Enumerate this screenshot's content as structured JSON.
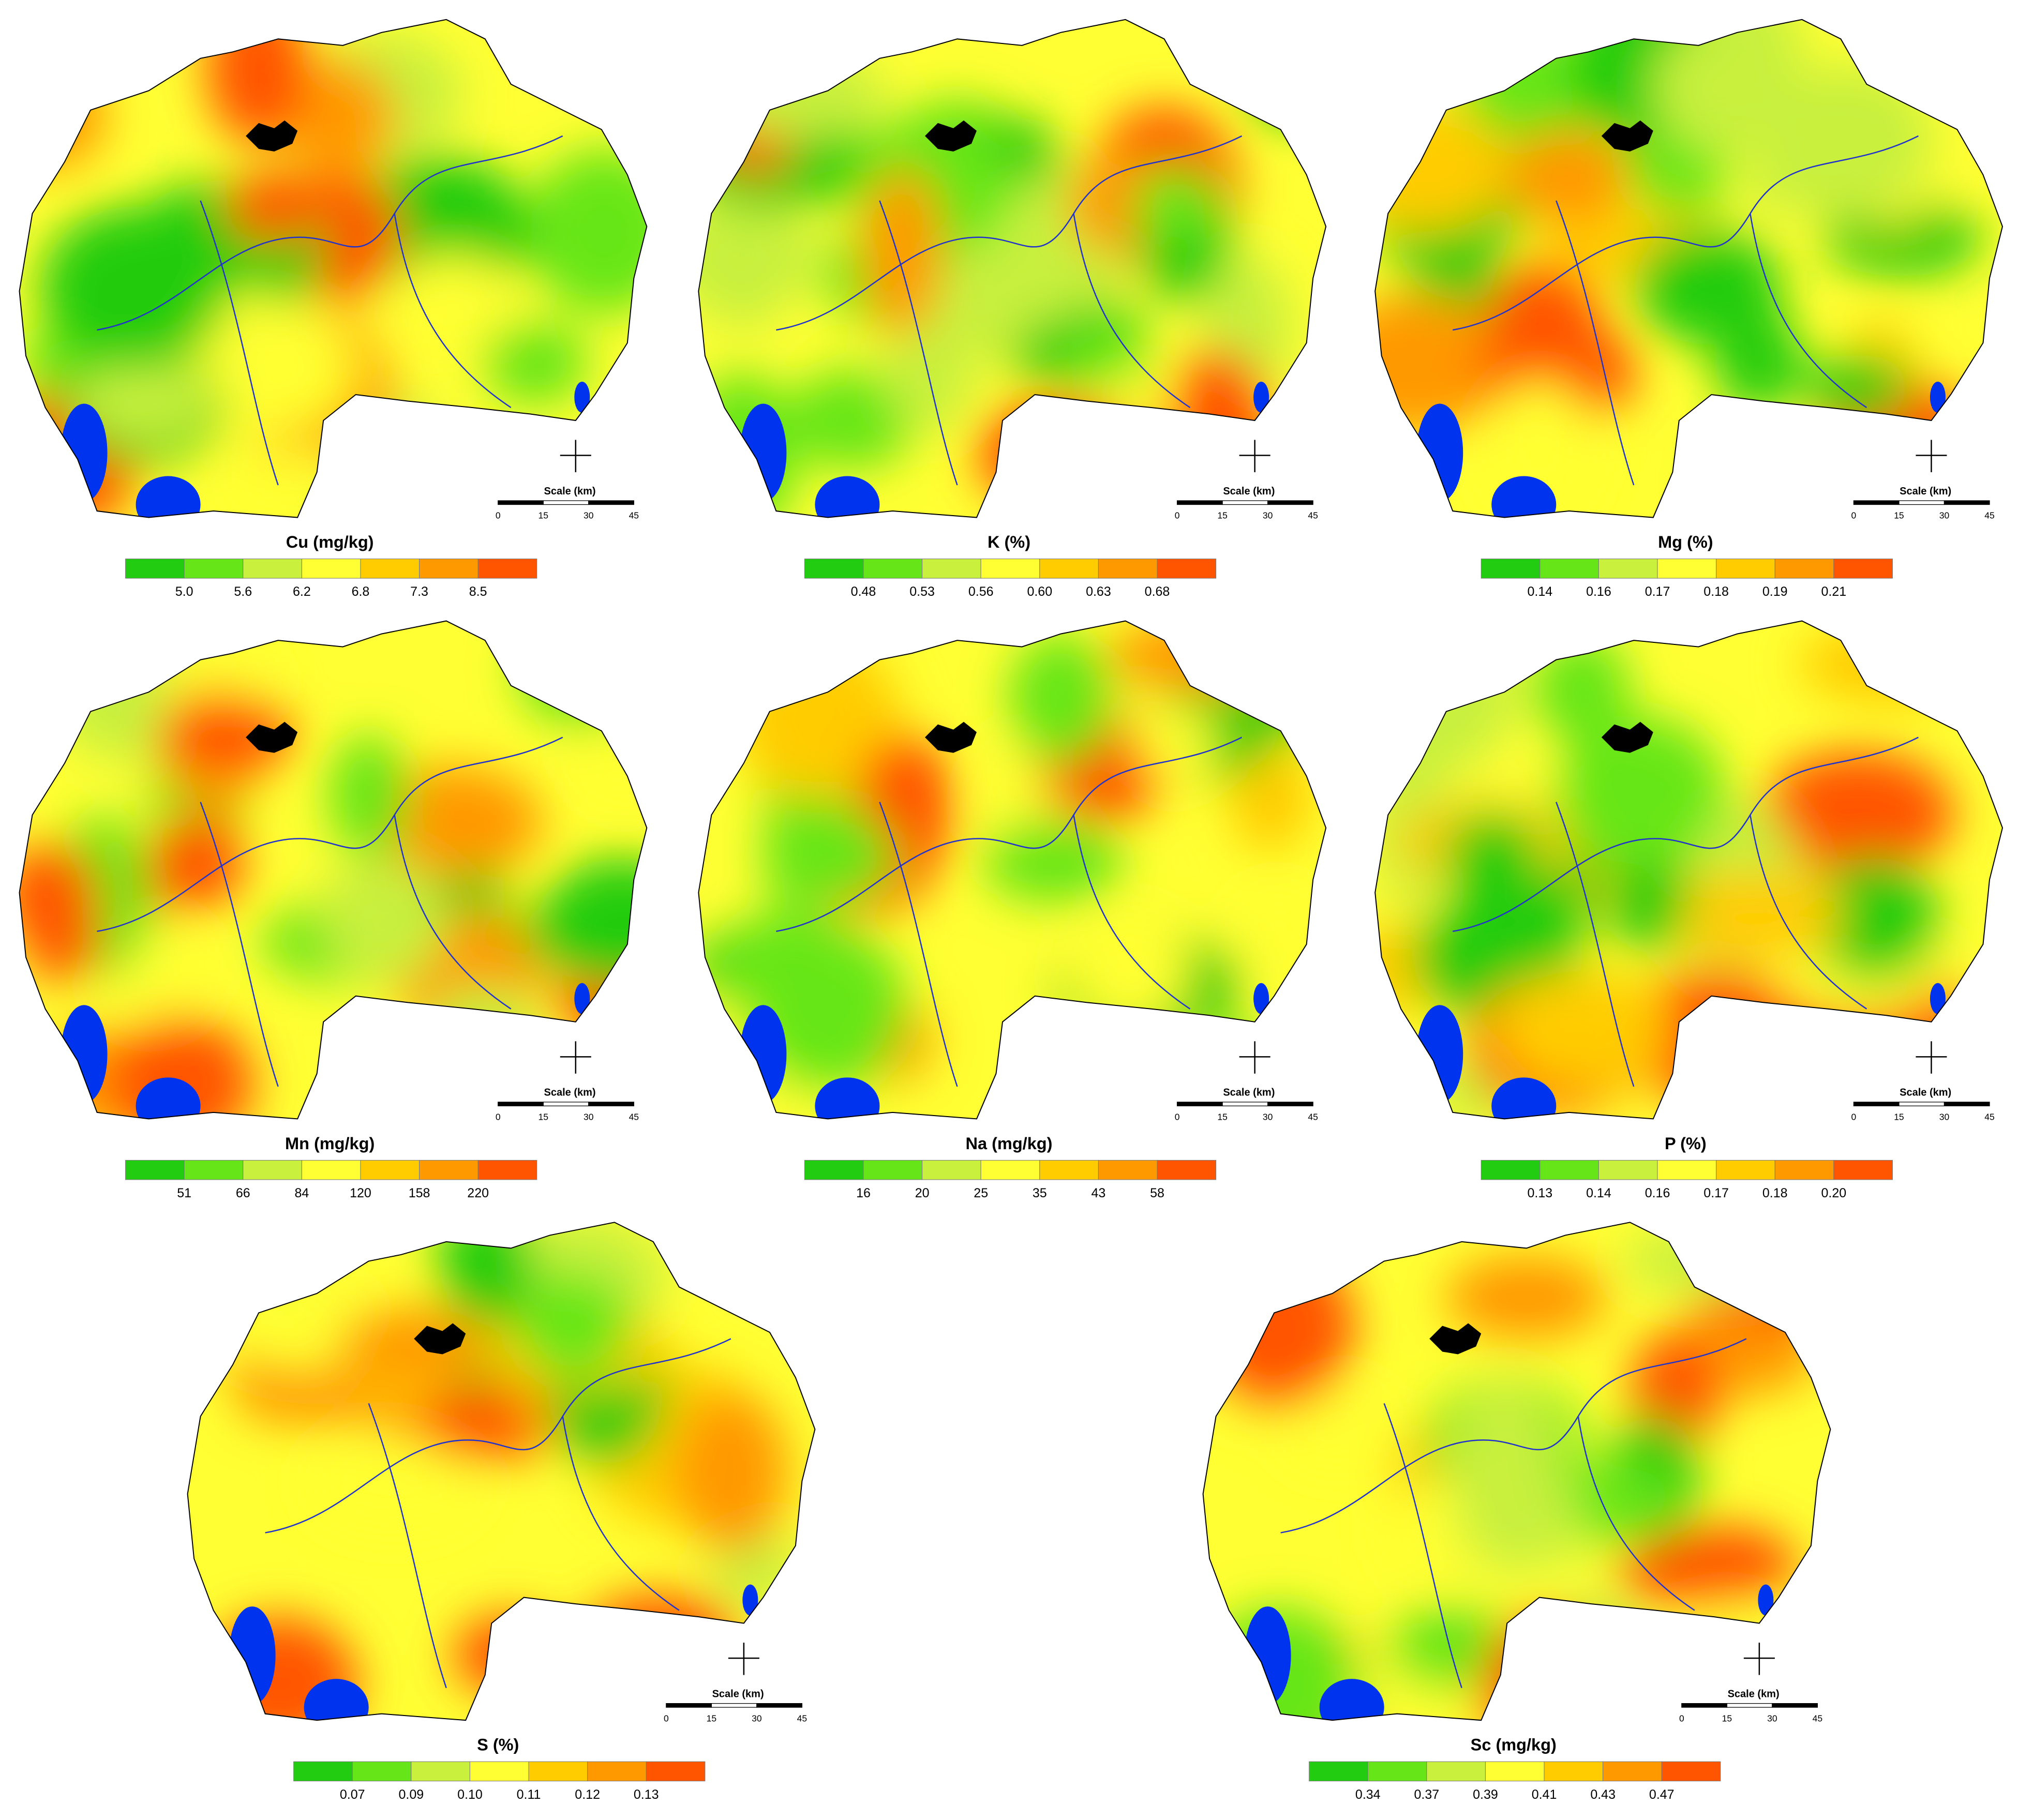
{
  "scale_bar": {
    "title": "Scale (km)",
    "ticks": [
      0,
      15,
      30,
      45
    ]
  },
  "legend_colors": [
    "#22cc11",
    "#66e619",
    "#c8f03c",
    "#ffff33",
    "#ffcc00",
    "#ff9900",
    "#ff5500"
  ],
  "maps": [
    {
      "title": "Cu (mg/kg)",
      "legend_ticks": [
        "5.0",
        "5.6",
        "6.2",
        "6.8",
        "7.3",
        "8.5"
      ]
    },
    {
      "title": "K (%)",
      "legend_ticks": [
        "0.48",
        "0.53",
        "0.56",
        "0.60",
        "0.63",
        "0.68"
      ]
    },
    {
      "title": "Mg (%)",
      "legend_ticks": [
        "0.14",
        "0.16",
        "0.17",
        "0.18",
        "0.19",
        "0.21"
      ]
    },
    {
      "title": "Mn (mg/kg)",
      "legend_ticks": [
        "51",
        "66",
        "84",
        "120",
        "158",
        "220"
      ]
    },
    {
      "title": "Na (mg/kg)",
      "legend_ticks": [
        "16",
        "20",
        "25",
        "35",
        "43",
        "58"
      ]
    },
    {
      "title": "P (%)",
      "legend_ticks": [
        "0.13",
        "0.14",
        "0.16",
        "0.17",
        "0.18",
        "0.20"
      ]
    },
    {
      "title": "S (%)",
      "legend_ticks": [
        "0.07",
        "0.09",
        "0.10",
        "0.11",
        "0.12",
        "0.13"
      ]
    },
    {
      "title": "Sc (mg/kg)",
      "legend_ticks": [
        "0.34",
        "0.37",
        "0.39",
        "0.41",
        "0.43",
        "0.47"
      ]
    }
  ]
}
